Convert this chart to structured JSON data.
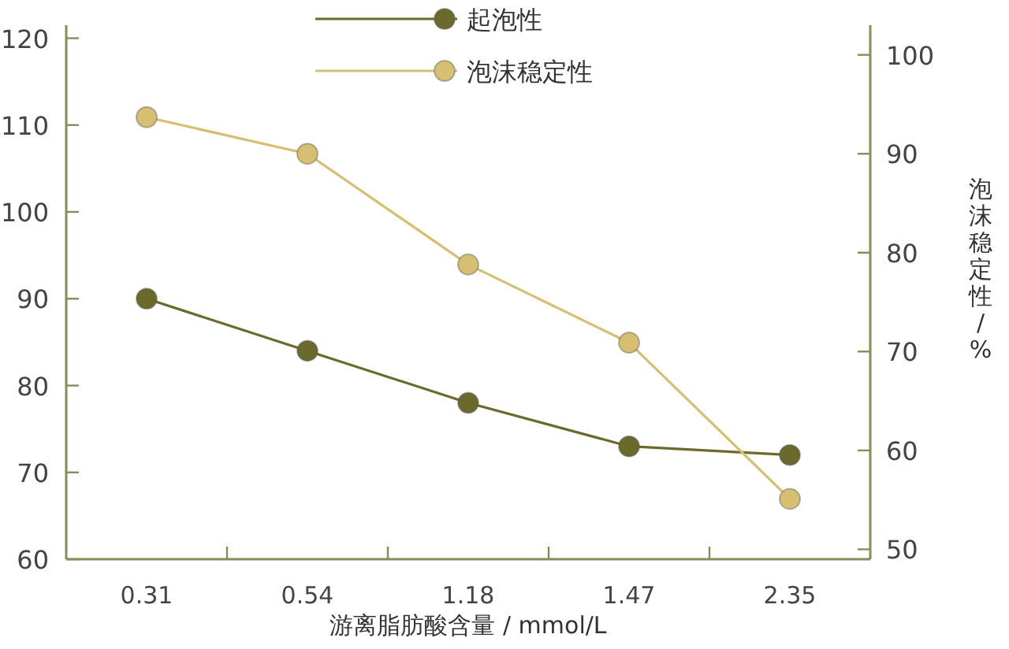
{
  "chart_data": {
    "type": "line",
    "categories": [
      "0.31",
      "0.54",
      "1.18",
      "1.47",
      "2.35"
    ],
    "xlabel": "游离脂肪酸含量 / mmol/L",
    "y2label": "泡沫稳定性 / %",
    "ylim": [
      60,
      121.5
    ],
    "yticks": [
      60,
      70,
      80,
      90,
      100,
      110,
      120
    ],
    "y2lim": [
      49,
      103
    ],
    "y2ticks": [
      50,
      60,
      70,
      80,
      90,
      100
    ],
    "legend": "top",
    "marker": "circle",
    "line_style": "solid",
    "grid": false,
    "series": [
      {
        "name": "起泡性",
        "color": "#6b6a2c",
        "values": [
          90,
          84,
          78,
          73,
          72
        ]
      },
      {
        "name": "泡沫稳定性",
        "color": "#d6bf72",
        "axis": "y2",
        "values": [
          93.7,
          90,
          78.8,
          70.9,
          55.1
        ]
      }
    ]
  }
}
